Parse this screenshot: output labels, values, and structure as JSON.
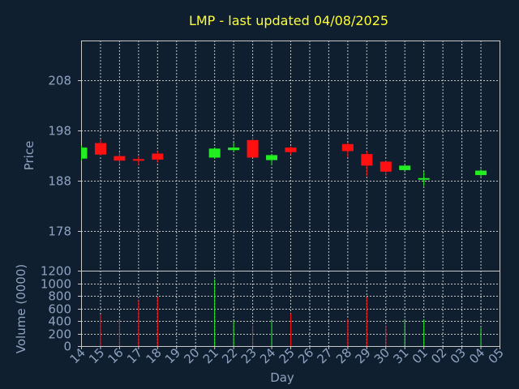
{
  "chart_data": {
    "type": "candlestick",
    "title": "LMP - last updated 04/08/2025",
    "price_ylabel": "Price",
    "volume_ylabel": "Volume (0000)",
    "xlabel": "Day",
    "price_ylim": [
      170,
      216
    ],
    "price_yticks": [
      178,
      188,
      198,
      208
    ],
    "volume_ylim": [
      0,
      1200
    ],
    "volume_yticks": [
      0,
      200,
      400,
      600,
      800,
      1000,
      1200
    ],
    "x_ticks": [
      "14",
      "15",
      "16",
      "17",
      "18",
      "19",
      "20",
      "21",
      "22",
      "23",
      "24",
      "25",
      "26",
      "27",
      "28",
      "29",
      "30",
      "31",
      "01",
      "02",
      "03",
      "04",
      "05"
    ],
    "grid": true,
    "colors": {
      "up": "#22ee22",
      "down": "#ff1111",
      "title": "#ffff33",
      "axis_text": "#8fa3c0",
      "background": "#0f1f30"
    },
    "candles": [
      {
        "day": "14",
        "open": 192.4,
        "high": 195.0,
        "low": 192.0,
        "close": 194.6,
        "volume": 0
      },
      {
        "day": "15",
        "open": 195.5,
        "high": 196.3,
        "low": 193.0,
        "close": 193.2,
        "volume": 500
      },
      {
        "day": "16",
        "open": 192.9,
        "high": 193.7,
        "low": 191.3,
        "close": 192.0,
        "volume": 420
      },
      {
        "day": "17",
        "open": 192.3,
        "high": 192.9,
        "low": 191.1,
        "close": 192.0,
        "volume": 730
      },
      {
        "day": "18",
        "open": 193.4,
        "high": 193.9,
        "low": 191.6,
        "close": 192.2,
        "volume": 780
      },
      {
        "day": "21",
        "open": 192.6,
        "high": 194.6,
        "low": 192.4,
        "close": 194.4,
        "volume": 1060
      },
      {
        "day": "22",
        "open": 194.1,
        "high": 195.6,
        "low": 193.7,
        "close": 194.6,
        "volume": 400
      },
      {
        "day": "23",
        "open": 196.1,
        "high": 196.7,
        "low": 192.6,
        "close": 192.6,
        "volume": 330
      },
      {
        "day": "24",
        "open": 192.1,
        "high": 193.2,
        "low": 191.1,
        "close": 193.1,
        "volume": 400
      },
      {
        "day": "25",
        "open": 194.6,
        "high": 194.8,
        "low": 193.2,
        "close": 193.7,
        "volume": 520
      },
      {
        "day": "28",
        "open": 195.3,
        "high": 195.6,
        "low": 192.7,
        "close": 193.9,
        "volume": 430
      },
      {
        "day": "29",
        "open": 193.3,
        "high": 193.9,
        "low": 188.9,
        "close": 191.0,
        "volume": 780
      },
      {
        "day": "30",
        "open": 191.8,
        "high": 192.0,
        "low": 189.0,
        "close": 189.8,
        "volume": 320
      },
      {
        "day": "31",
        "open": 190.1,
        "high": 191.3,
        "low": 189.7,
        "close": 191.0,
        "volume": 430
      },
      {
        "day": "01",
        "open": 188.2,
        "high": 189.8,
        "low": 186.9,
        "close": 188.5,
        "volume": 420
      },
      {
        "day": "04",
        "open": 189.1,
        "high": 190.3,
        "low": 188.8,
        "close": 190.0,
        "volume": 290
      }
    ]
  }
}
